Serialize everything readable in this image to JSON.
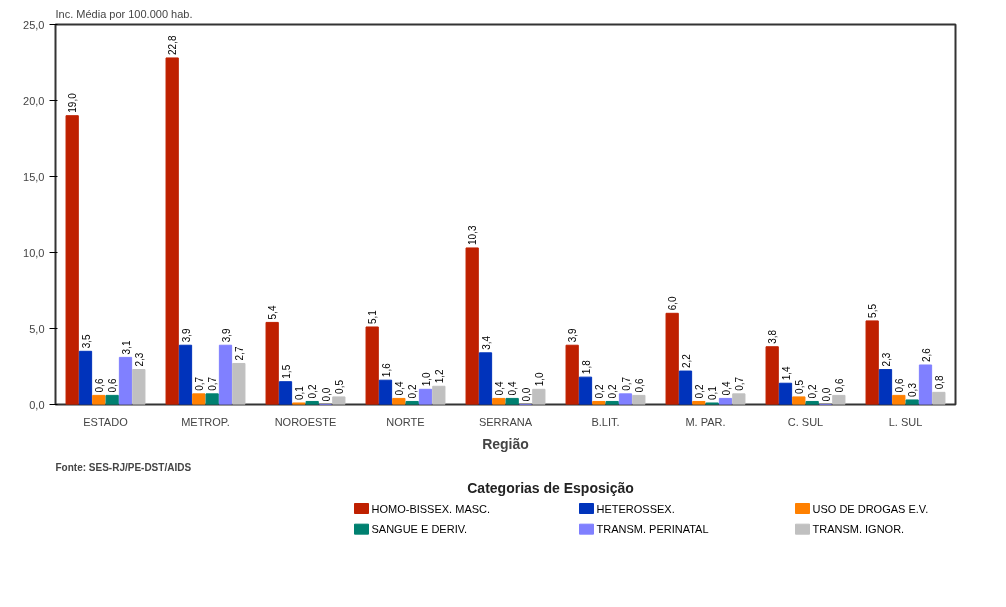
{
  "chart_data": {
    "type": "bar",
    "ylabel": "Inc. Média por 100.000 hab.",
    "xlabel": "Região",
    "legend_title": "Categorias de Esposição",
    "annotations": [
      "Fonte: SES-RJ/PE-DST/AIDS"
    ],
    "categories": [
      "ESTADO",
      "METROP.",
      "NOROESTE",
      "NORTE",
      "SERRANA",
      "B.LIT.",
      "M. PAR.",
      "C. SUL",
      "L. SUL"
    ],
    "ylim": [
      0,
      25
    ],
    "yticks": [
      {
        "value": 0,
        "label": "0,0"
      },
      {
        "value": 5,
        "label": "5,0"
      },
      {
        "value": 10,
        "label": "10,0"
      },
      {
        "value": 15,
        "label": "15,0"
      },
      {
        "value": 20,
        "label": "20,0"
      },
      {
        "value": 25,
        "label": "25,0"
      }
    ],
    "grid": false,
    "legend": "bottom",
    "series": [
      {
        "name": "HOMO-BISSEX. MASC.",
        "color": "#bf2000",
        "values": [
          19.0,
          22.8,
          5.4,
          5.1,
          10.3,
          3.9,
          6.0,
          3.8,
          5.5
        ],
        "value_labels": [
          "19,0",
          "22,8",
          "5,4",
          "5,1",
          "10,3",
          "3,9",
          "6,0",
          "3,8",
          "5,5"
        ]
      },
      {
        "name": "HETEROSSEX.",
        "color": "#0033bb",
        "values": [
          3.5,
          3.9,
          1.5,
          1.6,
          3.4,
          1.8,
          2.2,
          1.4,
          2.3
        ],
        "value_labels": [
          "3,5",
          "3,9",
          "1,5",
          "1,6",
          "3,4",
          "1,8",
          "2,2",
          "1,4",
          "2,3"
        ]
      },
      {
        "name": "USO DE DROGAS E.V.",
        "color": "#ff8000",
        "values": [
          0.6,
          0.7,
          0.1,
          0.4,
          0.4,
          0.2,
          0.2,
          0.5,
          0.6
        ],
        "value_labels": [
          "0,6",
          "0,7",
          "0,1",
          "0,4",
          "0,4",
          "0,2",
          "0,2",
          "0,5",
          "0,6"
        ]
      },
      {
        "name": "SANGUE E DERIV.",
        "color": "#008070",
        "values": [
          0.6,
          0.7,
          0.2,
          0.2,
          0.4,
          0.2,
          0.1,
          0.2,
          0.3
        ],
        "value_labels": [
          "0,6",
          "0,7",
          "0,2",
          "0,2",
          "0,4",
          "0,2",
          "0,1",
          "0,2",
          "0,3"
        ]
      },
      {
        "name": "TRANSM. PERINATAL",
        "color": "#8080ff",
        "values": [
          3.1,
          3.9,
          0.0,
          1.0,
          0.0,
          0.7,
          0.4,
          0.0,
          2.6
        ],
        "value_labels": [
          "3,1",
          "3,9",
          "0,0",
          "1,0",
          "0,0",
          "0,7",
          "0,4",
          "0,0",
          "2,6"
        ]
      },
      {
        "name": "TRANSM. IGNOR.",
        "color": "#c0c0c0",
        "values": [
          2.3,
          2.7,
          0.5,
          1.2,
          1.0,
          0.6,
          0.7,
          0.6,
          0.8
        ],
        "value_labels": [
          "2,3",
          "2,7",
          "0,5",
          "1,2",
          "1,0",
          "0,6",
          "0,7",
          "0,6",
          "0,8"
        ]
      }
    ]
  }
}
